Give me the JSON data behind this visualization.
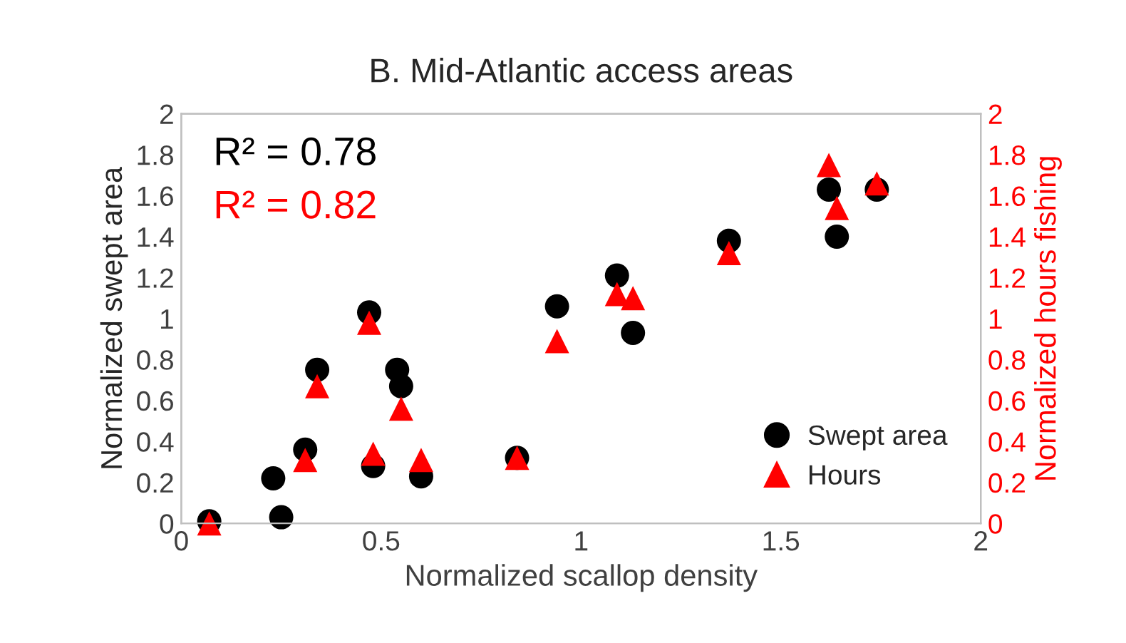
{
  "chart_data": {
    "type": "scatter",
    "title": "B. Mid-Atlantic access areas",
    "xlabel": "Normalized scallop density",
    "ylabel": "Normalized swept area",
    "y2label": "Normalized hours fishing",
    "annotations": [
      "R² = 0.78",
      "R² = 0.82"
    ],
    "series": [
      {
        "name": "Swept area",
        "color": "#000000",
        "marker": "circle",
        "x": [
          0.07,
          0.23,
          0.25,
          0.31,
          0.34,
          0.47,
          0.48,
          0.54,
          0.55,
          0.6,
          0.84,
          0.94,
          1.09,
          1.13,
          1.37,
          1.62,
          1.64,
          1.74
        ],
        "values": [
          0.01,
          0.22,
          0.03,
          0.36,
          0.75,
          1.03,
          0.28,
          0.75,
          0.67,
          0.23,
          0.32,
          1.06,
          1.21,
          0.93,
          1.38,
          1.63,
          1.4,
          1.63
        ]
      },
      {
        "name": "Hours",
        "color": "#ff0000",
        "marker": "triangle",
        "axis": "y2",
        "x": [
          0.07,
          0.31,
          0.34,
          0.47,
          0.48,
          0.55,
          0.6,
          0.84,
          0.94,
          1.09,
          1.13,
          1.37,
          1.62,
          1.64,
          1.74
        ],
        "values": [
          0.0,
          0.31,
          0.67,
          0.98,
          0.34,
          0.56,
          0.31,
          0.32,
          0.89,
          1.12,
          1.1,
          1.32,
          1.75,
          1.54,
          1.66
        ]
      }
    ],
    "xlim": [
      0,
      2
    ],
    "xticks": [
      0,
      0.5,
      1,
      1.5,
      2
    ],
    "ylim": [
      0,
      2
    ],
    "yticks": [
      0,
      0.2,
      0.4,
      0.6,
      0.8,
      1,
      1.2,
      1.4,
      1.6,
      1.8,
      2
    ],
    "y2lim": [
      0,
      2
    ],
    "y2ticks": [
      0,
      0.2,
      0.4,
      0.6,
      0.8,
      1,
      1.2,
      1.4,
      1.6,
      1.8,
      2
    ],
    "grid": false,
    "legend": "bottom right"
  }
}
